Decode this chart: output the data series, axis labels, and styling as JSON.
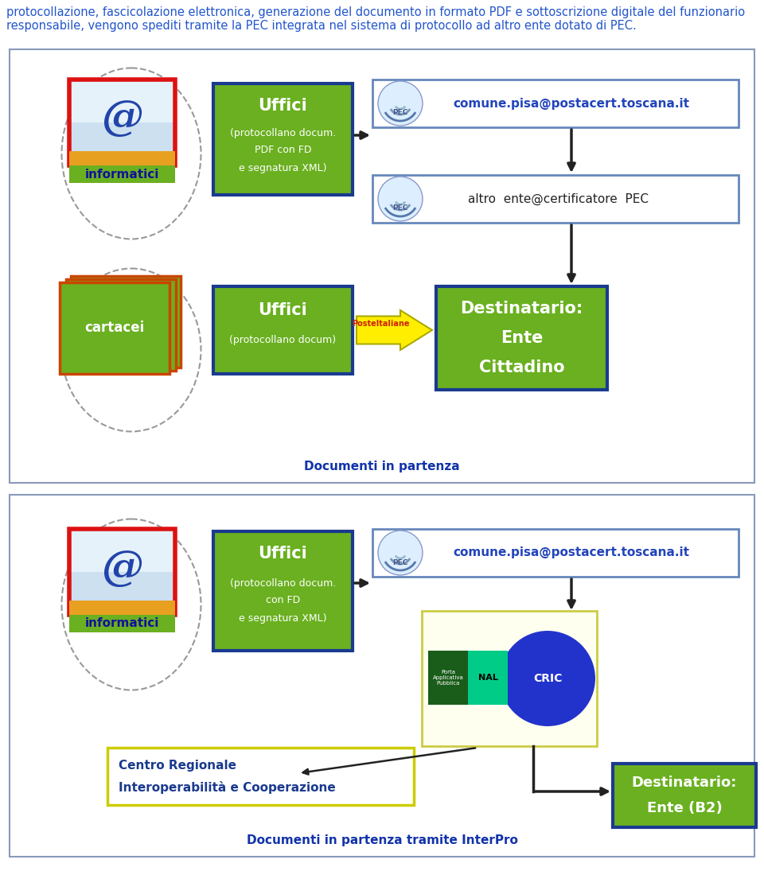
{
  "header_text": "protocollazione, fascicolazione elettronica, generazione del documento in formato PDF e sottoscrizione digitale del funzionario\nresponsabile, vengono spediti tramite la PEC integrata nel sistema di protocollo ad altro ente dotato di PEC.",
  "header_color": "#2255cc",
  "header_fontsize": 10.5,
  "bg_color": "#ffffff",
  "panel1_label": "Documenti in partenza",
  "panel2_label": "Documenti in partenza tramite InterPro",
  "label_color": "#1133aa",
  "label_fontsize": 11,
  "green_color": "#6ab020",
  "dark_blue": "#1a3a8f",
  "blue_text": "#1a3a8f",
  "email_blue": "#2244bb",
  "arrow_color": "#222222",
  "pec_border": "#6688bb",
  "cartacei_border": "#cc4400"
}
